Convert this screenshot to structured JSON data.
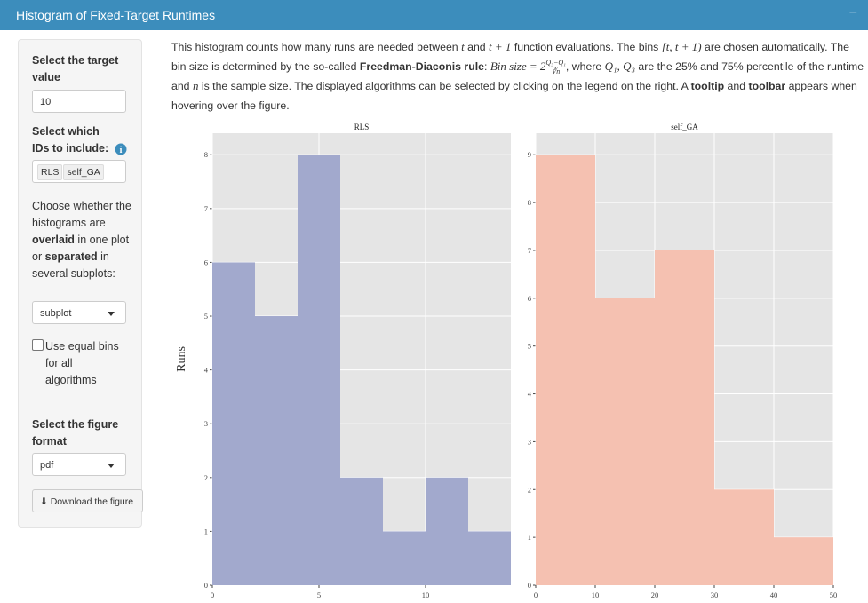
{
  "header": {
    "title": "Histogram of Fixed-Target Runtimes",
    "collapse": "−"
  },
  "sidebar": {
    "target_label": "Select the target value",
    "target_value": 10,
    "ids_label": "Select which IDs to include:",
    "ids": [
      "RLS",
      "self_GA"
    ],
    "layout_text": [
      {
        "text": "Choose whether the histograms are ",
        "style": "plain"
      },
      {
        "text": "overlaid",
        "style": "bold"
      },
      {
        "text": " in one plot or ",
        "style": "plain"
      },
      {
        "text": "separated",
        "style": "bold"
      },
      {
        "text": " in several subplots:",
        "style": "plain"
      }
    ],
    "layout_choice": "subplot",
    "equal_bins_label": "Use equal bins for all algorithms",
    "format_label": "Select the figure format",
    "format_choice": "pdf",
    "download_label": "Download the figure"
  },
  "description": [
    {
      "text": "This histogram counts how many runs  are needed between ",
      "style": "plain"
    },
    {
      "text": "t",
      "style": "math"
    },
    {
      "text": " and ",
      "style": "plain"
    },
    {
      "text": "t + 1",
      "style": "math"
    },
    {
      "text": " function evaluations. The bins ",
      "style": "plain"
    },
    {
      "text": "[t, t + 1)",
      "style": "math"
    },
    {
      "text": " are chosen automatically. The bin size is determined by the so-called ",
      "style": "plain"
    },
    {
      "text": "Freedman-Diaconis rule",
      "style": "bold"
    },
    {
      "text": ": ",
      "style": "plain"
    },
    {
      "text": "Bin size = 2",
      "style": "math"
    },
    {
      "num": "Q₃−Q₁",
      "den": "∛n",
      "style": "fraction"
    },
    {
      "text": ", where ",
      "style": "plain"
    },
    {
      "text": "Q₁, Q₃",
      "style": "math"
    },
    {
      "text": " are the 25% and 75% percentile of the runtime and ",
      "style": "plain"
    },
    {
      "text": "n",
      "style": "math"
    },
    {
      "text": " is the sample size. The displayed algorithms can be selected by clicking on the legend on the right. A ",
      "style": "plain"
    },
    {
      "text": "tooltip",
      "style": "bold"
    },
    {
      "text": " and ",
      "style": "plain"
    },
    {
      "text": "toolbar",
      "style": "bold"
    },
    {
      "text": " appears when hovering over the figure.",
      "style": "plain"
    }
  ],
  "chart_data": [
    {
      "type": "histogram",
      "title": "RLS",
      "y_label": "Runs",
      "color": "#a2a9cd",
      "bins": [
        0,
        2,
        4,
        6,
        8,
        10,
        12,
        14
      ],
      "counts": [
        6,
        5,
        8,
        2,
        1,
        2,
        1
      ],
      "xlim": [
        0,
        14
      ],
      "xticks": [
        0,
        5,
        10
      ],
      "ylim": [
        0,
        8.4
      ],
      "yticks": [
        0,
        1,
        2,
        3,
        4,
        5,
        6,
        7,
        8
      ],
      "grid": true
    },
    {
      "type": "histogram",
      "title": "self_GA",
      "color": "#f5c1b1",
      "bins": [
        0,
        10,
        20,
        30,
        40,
        50
      ],
      "counts": [
        9,
        6,
        7,
        2,
        1
      ],
      "xlim": [
        0,
        50
      ],
      "xticks": [
        0,
        10,
        20,
        30,
        40,
        50
      ],
      "ylim": [
        0,
        9.45
      ],
      "yticks": [
        0,
        1,
        2,
        3,
        4,
        5,
        6,
        7,
        8,
        9
      ],
      "grid": true
    }
  ]
}
